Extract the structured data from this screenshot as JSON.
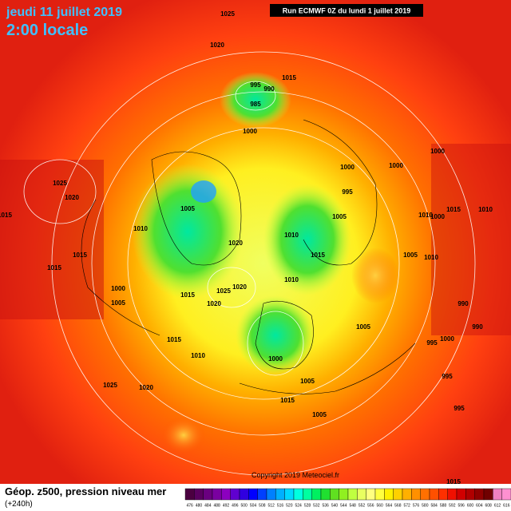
{
  "header": {
    "date": "jeudi 11 juillet 2019",
    "time": "2:00 locale",
    "run": "Run ECMWF 0Z du lundi 1 juillet 2019"
  },
  "footer": {
    "title": "Géop. z500, pression niveau mer",
    "lead": "(+240h)",
    "copyright": "Copyright 2019 Meteociel.fr"
  },
  "legend": {
    "values": [
      476,
      480,
      484,
      488,
      492,
      496,
      500,
      504,
      508,
      512,
      516,
      520,
      524,
      528,
      532,
      536,
      540,
      544,
      548,
      552,
      556,
      560,
      564,
      568,
      572,
      576,
      580,
      584,
      588,
      592,
      596,
      600,
      604,
      608,
      612,
      616
    ],
    "colors": [
      "#4b0040",
      "#5a0060",
      "#6a0080",
      "#7a00a0",
      "#8c00c0",
      "#6000d0",
      "#3000e0",
      "#0000ff",
      "#0040ff",
      "#0080ff",
      "#00b0ff",
      "#00d8ff",
      "#00ffe0",
      "#00ffa0",
      "#00f060",
      "#20e030",
      "#60e020",
      "#90f020",
      "#c0ff40",
      "#e8ff60",
      "#ffff80",
      "#ffff40",
      "#fff000",
      "#ffd000",
      "#ffb000",
      "#ff9000",
      "#ff7000",
      "#ff5000",
      "#ff3000",
      "#f01000",
      "#d00000",
      "#b00000",
      "#900000",
      "#700000",
      "#f080c0",
      "#ff90d0"
    ]
  },
  "isobar_labels": [
    "1025",
    "1020",
    "1015",
    "995",
    "990",
    "985",
    "1000",
    "1025",
    "1020",
    "1015",
    "1005",
    "1010",
    "1015",
    "1015",
    "1020",
    "1010",
    "1015",
    "1005",
    "1000",
    "1000",
    "995",
    "1000",
    "1010",
    "1025",
    "1020",
    "1000",
    "1005",
    "1015",
    "1020",
    "1015",
    "1010",
    "1000",
    "1005",
    "1005",
    "1010",
    "1025",
    "1020",
    "1015",
    "1005",
    "995",
    "995",
    "1000",
    "995",
    "1005",
    "1010",
    "990",
    "990",
    "1015",
    "1010",
    "1000",
    "1015"
  ]
}
